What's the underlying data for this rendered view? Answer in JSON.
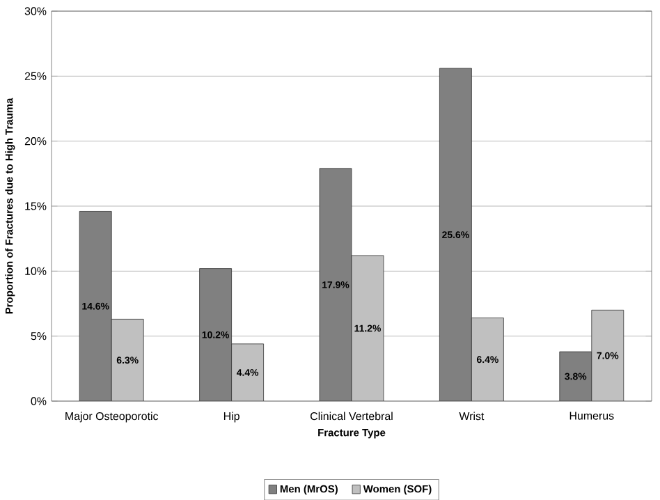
{
  "chart_data": {
    "type": "bar",
    "xlabel": "Fracture Type",
    "ylabel": "Proportion of Fractures due to High Trauma",
    "categories": [
      "Major Osteoporotic",
      "Hip",
      "Clinical Vertebral",
      "Wrist",
      "Humerus"
    ],
    "series": [
      {
        "name": "Men (MrOS)",
        "color": "#808080",
        "values": [
          14.6,
          10.2,
          17.9,
          25.6,
          3.8
        ],
        "value_labels": [
          "14.6%",
          "10.2%",
          "17.9%",
          "25.6%",
          "3.8%"
        ]
      },
      {
        "name": "Women (SOF)",
        "color": "#c0c0c0",
        "values": [
          6.3,
          4.4,
          11.2,
          6.4,
          7.0
        ],
        "value_labels": [
          "6.3%",
          "4.4%",
          "11.2%",
          "6.4%",
          "7.0%"
        ]
      }
    ],
    "ylim": [
      0,
      30
    ],
    "yticks": [
      {
        "value": 0,
        "label": "0%"
      },
      {
        "value": 5,
        "label": "5%"
      },
      {
        "value": 10,
        "label": "10%"
      },
      {
        "value": 15,
        "label": "15%"
      },
      {
        "value": 20,
        "label": "20%"
      },
      {
        "value": 25,
        "label": "25%"
      },
      {
        "value": 30,
        "label": "30%"
      }
    ],
    "grid": "y",
    "legend": "bottom"
  }
}
